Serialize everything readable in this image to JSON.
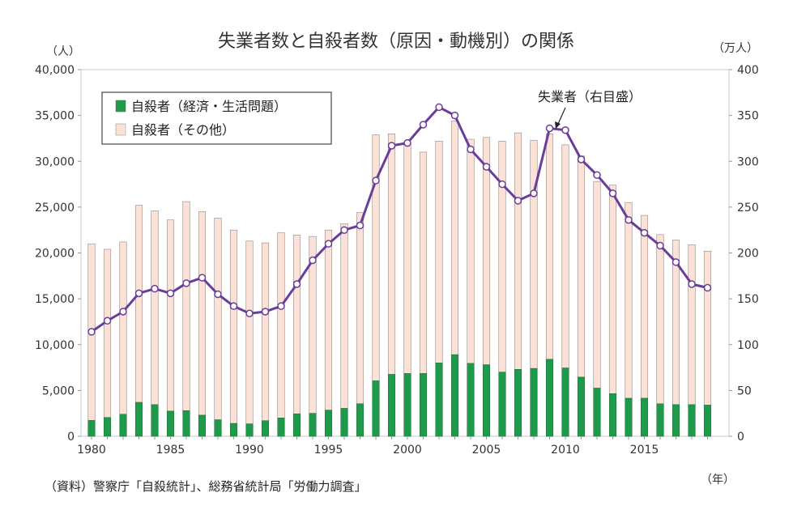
{
  "chart_data": {
    "type": "bar+line",
    "title": "失業者数と自殺者数（原因・動機別）の関係",
    "left_unit": "（人）",
    "right_unit": "（万人）",
    "x_unit": "（年）",
    "source": "（資料）警察庁「自殺統計」、総務省統計局「労働力調査」",
    "years": [
      1980,
      1981,
      1982,
      1983,
      1984,
      1985,
      1986,
      1987,
      1988,
      1989,
      1990,
      1991,
      1992,
      1993,
      1994,
      1995,
      1996,
      1997,
      1998,
      1999,
      2000,
      2001,
      2002,
      2003,
      2004,
      2005,
      2006,
      2007,
      2008,
      2009,
      2010,
      2011,
      2012,
      2013,
      2014,
      2015,
      2016,
      2017,
      2018,
      2019
    ],
    "x_ticks": [
      1980,
      1985,
      1990,
      1995,
      2000,
      2005,
      2010,
      2015
    ],
    "y_left": {
      "min": 0,
      "max": 40000,
      "ticks": [
        0,
        5000,
        10000,
        15000,
        20000,
        25000,
        30000,
        35000,
        40000
      ],
      "labels": [
        "0",
        "5,000",
        "10,000",
        "15,000",
        "20,000",
        "25,000",
        "30,000",
        "35,000",
        "40,000"
      ]
    },
    "y_right": {
      "min": 0,
      "max": 400,
      "ticks": [
        0,
        50,
        100,
        150,
        200,
        250,
        300,
        350,
        400
      ],
      "labels": [
        "0",
        "50",
        "100",
        "150",
        "200",
        "250",
        "300",
        "350",
        "400"
      ]
    },
    "series": [
      {
        "name": "自殺者（経済・生活問題）",
        "kind": "bar",
        "axis": "left",
        "color": "#1e9a4b",
        "values": [
          1730,
          2050,
          2400,
          3700,
          3450,
          2750,
          2800,
          2300,
          1800,
          1400,
          1350,
          1700,
          2000,
          2450,
          2500,
          2850,
          3050,
          3550,
          6050,
          6750,
          6850,
          6850,
          8000,
          8900,
          7950,
          7800,
          7000,
          7300,
          7400,
          8400,
          7450,
          6450,
          5250,
          4650,
          4150,
          4150,
          3550,
          3450,
          3450,
          3400
        ]
      },
      {
        "name": "自殺者（その他）",
        "kind": "bar",
        "axis": "left",
        "color": "#fbe1d6",
        "values": [
          19270,
          18350,
          18800,
          21500,
          21150,
          20850,
          22800,
          22200,
          22000,
          21100,
          19950,
          19400,
          20200,
          19500,
          19300,
          19650,
          20150,
          20850,
          26850,
          26250,
          25100,
          24150,
          24200,
          25500,
          24450,
          24800,
          25200,
          25800,
          24900,
          24600,
          24350,
          24150,
          22550,
          22750,
          21350,
          19950,
          18450,
          17950,
          17450,
          16800
        ]
      },
      {
        "name": "失業者",
        "kind": "line",
        "axis": "right",
        "color": "#6a3d9a",
        "values": [
          114,
          126,
          136,
          156,
          161,
          156,
          167,
          173,
          155,
          142,
          134,
          136,
          142,
          166,
          192,
          210,
          225,
          230,
          279,
          317,
          320,
          340,
          359,
          350,
          313,
          294,
          275,
          257,
          265,
          336,
          334,
          302,
          285,
          265,
          236,
          222,
          208,
          190,
          166,
          162
        ]
      }
    ],
    "legend": {
      "position": "top-left"
    },
    "annotation": {
      "text": "失業者（右目盛）",
      "year": 2009
    },
    "grid": false
  }
}
